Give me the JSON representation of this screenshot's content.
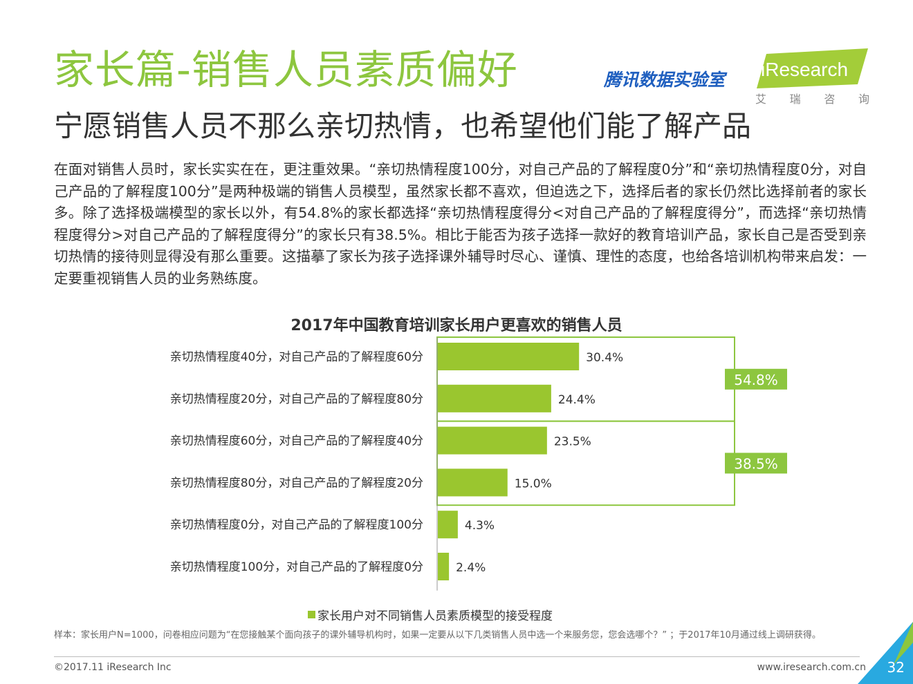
{
  "header": {
    "title": "家长篇-销售人员素质偏好",
    "subtitle": "宁愿销售人员不那么亲切热情，也希望他们能了解产品",
    "tencent_logo": "腾讯数据实验室",
    "iresearch_logo": "iResearch",
    "iresearch_cn": [
      "艾",
      "瑞",
      "咨",
      "询"
    ]
  },
  "body_text": "在面对销售人员时，家长实实在在，更注重效果。“亲切热情程度100分，对自己产品的了解程度0分”和“亲切热情程度0分，对自己产品的了解程度100分”是两种极端的销售人员模型，虽然家长都不喜欢，但迫选之下，选择后者的家长仍然比选择前者的家长多。除了选择极端模型的家长以外，有54.8%的家长都选择“亲切热情程度得分<对自己产品的了解程度得分”，而选择“亲切热情程度得分>对自己产品的了解程度得分”的家长只有38.5%。相比于能否为孩子选择一款好的教育培训产品，家长自己是否受到亲切热情的接待则显得没有那么重要。这描摹了家长为孩子选择课外辅导时尽心、谨慎、理性的态度，也给各培训机构带来启发：一定要重视销售人员的业务熟练度。",
  "chart_data": {
    "type": "bar",
    "orientation": "horizontal",
    "title": "2017年中国教育培训家长用户更喜欢的销售人员",
    "categories": [
      "亲切热情程度40分，对自己产品的了解程度60分",
      "亲切热情程度20分，对自己产品的了解程度80分",
      "亲切热情程度60分，对自己产品的了解程度40分",
      "亲切热情程度80分，对自己产品的了解程度20分",
      "亲切热情程度0分，对自己产品的了解程度100分",
      "亲切热情程度100分，对自己产品的了解程度0分"
    ],
    "series": [
      {
        "name": "家长用户对不同销售人员素质模型的接受程度",
        "values": [
          30.4,
          24.4,
          23.5,
          15.0,
          4.3,
          2.4
        ]
      }
    ],
    "value_labels": [
      "30.4%",
      "24.4%",
      "23.5%",
      "15.0%",
      "4.3%",
      "2.4%"
    ],
    "groups": [
      {
        "label": "54.8%",
        "first": 0,
        "last": 1
      },
      {
        "label": "38.5%",
        "first": 2,
        "last": 3
      }
    ],
    "xlim": [
      0,
      60
    ],
    "grid": false,
    "legend_position": "bottom",
    "bar_color": "#9ac62f",
    "group_color": "#8dc63f"
  },
  "legend": {
    "label": "家长用户对不同销售人员素质模型的接受程度"
  },
  "footer": {
    "footnote": "样本：家长用户N=1000，问卷相应问题为“在您接触某个面向孩子的课外辅导机构时，如果一定要从以下几类销售人员中选一个来服务您，您会选哪个？” ；于2017年10月通过线上调研获得。",
    "copyright": "©2017.11 iResearch Inc",
    "website": "www.iresearch.com.cn",
    "page_number": "32"
  },
  "colors": {
    "accent": "#8dc63f",
    "bar": "#9ac62f",
    "tencent_blue": "#1f5fbf",
    "corner_blue": "#29a9e0"
  }
}
